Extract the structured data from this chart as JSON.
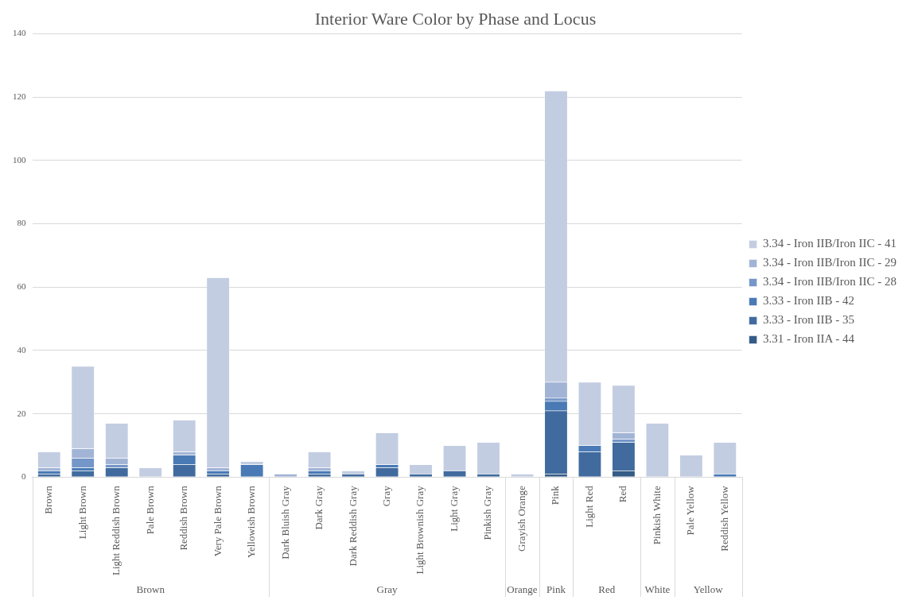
{
  "chart_data": {
    "type": "bar",
    "title": "Interior Ware Color by Phase and Locus",
    "categories": [
      "Brown",
      "Light Brown",
      "Light Reddish Brown",
      "Pale Brown",
      "Reddish Brown",
      "Very Pale Brown",
      "Yellowish Brown",
      "Dark Bluish Gray",
      "Dark Gray",
      "Dark Reddish Gray",
      "Gray",
      "Light Brownish Gray",
      "Light Gray",
      "Pinkish Gray",
      "Grayish Orange",
      "Pink",
      "Light Red",
      "Red",
      "Pinkish White",
      "Pale Yellow",
      "Reddish Yellow"
    ],
    "series": [
      {
        "name": "3.31 - Iron IIA - 44",
        "color": "#355b87",
        "values": [
          null,
          null,
          null,
          null,
          null,
          null,
          null,
          null,
          null,
          null,
          null,
          null,
          null,
          null,
          null,
          1,
          null,
          2,
          null,
          null,
          null
        ]
      },
      {
        "name": "3.33 - Iron IIB - 35",
        "color": "#416b9e",
        "values": [
          1,
          2,
          3,
          null,
          4,
          1,
          null,
          null,
          1,
          1,
          3,
          1,
          2,
          1,
          null,
          20,
          8,
          9,
          null,
          null,
          null
        ]
      },
      {
        "name": "3.33 - Iron IIB - 42",
        "color": "#4a7ab5",
        "values": [
          1,
          1,
          null,
          null,
          3,
          1,
          4,
          null,
          1,
          null,
          1,
          null,
          null,
          null,
          null,
          3,
          2,
          null,
          null,
          null,
          1
        ]
      },
      {
        "name": "3.34 - Iron IIB/Iron IIC - 28",
        "color": "#7596c8",
        "values": [
          null,
          3,
          1,
          null,
          null,
          null,
          null,
          null,
          null,
          null,
          null,
          null,
          null,
          null,
          null,
          1,
          null,
          1,
          null,
          null,
          null
        ]
      },
      {
        "name": "3.34 - Iron IIB/Iron IIC - 29",
        "color": "#a2b4d6",
        "values": [
          1,
          3,
          2,
          null,
          1,
          1,
          null,
          1,
          1,
          null,
          null,
          null,
          null,
          null,
          null,
          5,
          null,
          2,
          null,
          null,
          null
        ]
      },
      {
        "name": "3.34 - Iron IIB/Iron IIC - 41",
        "color": "#c3cde2",
        "values": [
          5,
          26,
          11,
          3,
          10,
          60,
          1,
          null,
          5,
          1,
          10,
          3,
          8,
          10,
          1,
          92,
          20,
          15,
          17,
          7,
          10
        ]
      }
    ],
    "stacked": true,
    "ylim": [
      0,
      140
    ],
    "yticks": [
      0,
      20,
      40,
      60,
      80,
      100,
      120,
      140
    ],
    "grid": "y",
    "legend": "right",
    "annotations": [
      "Brown",
      "Gray",
      "Orange",
      "Pink",
      "Red",
      "White",
      "Yellow"
    ]
  }
}
